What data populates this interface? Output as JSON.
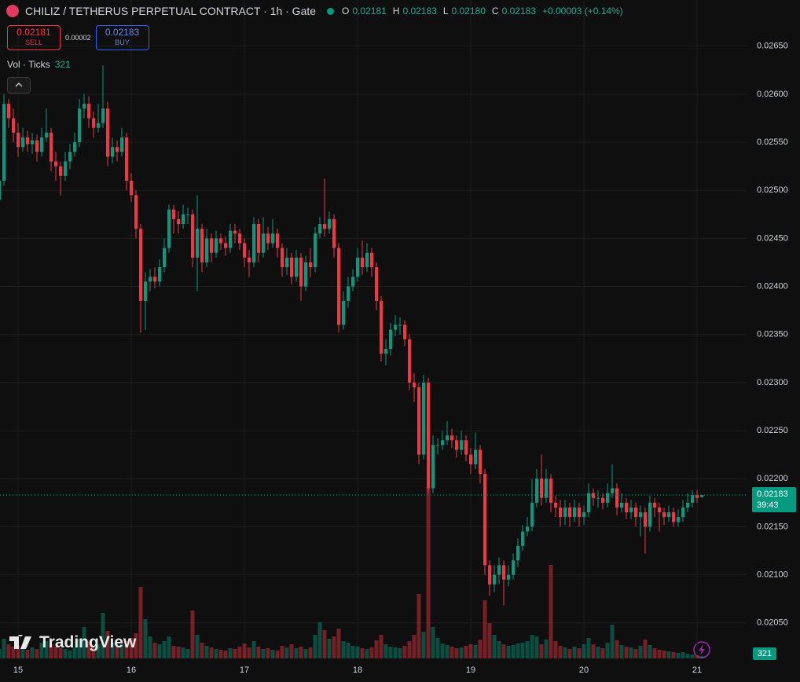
{
  "chart_data": {
    "type": "candlestick",
    "title": "CHILIZ / TETHERUS PERPETUAL CONTRACT · 1h · Gate",
    "categories": [
      null,
      null,
      null,
      null,
      "15",
      null,
      null,
      null,
      null,
      null,
      null,
      null,
      null,
      null,
      null,
      null,
      null,
      null,
      null,
      null,
      null,
      null,
      null,
      null,
      null,
      null,
      null,
      null,
      "16",
      null,
      null,
      null,
      null,
      null,
      null,
      null,
      null,
      null,
      null,
      null,
      null,
      null,
      null,
      null,
      null,
      null,
      null,
      null,
      null,
      null,
      null,
      null,
      "17",
      null,
      null,
      null,
      null,
      null,
      null,
      null,
      null,
      null,
      null,
      null,
      null,
      null,
      null,
      null,
      null,
      null,
      null,
      null,
      null,
      null,
      null,
      null,
      "18",
      null,
      null,
      null,
      null,
      null,
      null,
      null,
      null,
      null,
      null,
      null,
      null,
      null,
      null,
      null,
      null,
      null,
      null,
      null,
      null,
      null,
      null,
      null,
      "19",
      null,
      null,
      null,
      null,
      null,
      null,
      null,
      null,
      null,
      null,
      null,
      null,
      null,
      null,
      null,
      null,
      null,
      null,
      null,
      null,
      null,
      null,
      null,
      "20",
      null,
      null,
      null,
      null,
      null,
      null,
      null,
      null,
      null,
      null,
      null,
      null,
      null,
      null,
      null,
      null,
      null,
      null,
      null,
      null,
      null,
      null,
      null,
      "21",
      null
    ],
    "open": [
      0.0249,
      0.0251,
      0.0259,
      0.02575,
      0.0256,
      0.02545,
      0.02555,
      0.02548,
      0.02552,
      0.0254,
      0.02555,
      0.0256,
      0.0253,
      0.02525,
      0.02515,
      0.0253,
      0.0254,
      0.0255,
      0.02585,
      0.0259,
      0.02575,
      0.02565,
      0.0257,
      0.02585,
      0.02535,
      0.02545,
      0.0254,
      0.02555,
      0.0251,
      0.02495,
      0.0246,
      0.02385,
      0.02405,
      0.0241,
      0.02405,
      0.0242,
      0.0244,
      0.0248,
      0.0247,
      0.02465,
      0.02475,
      0.02475,
      0.0243,
      0.0246,
      0.02425,
      0.0245,
      0.02435,
      0.0245,
      0.02445,
      0.0244,
      0.02458,
      0.02455,
      0.02445,
      0.0243,
      0.02425,
      0.02465,
      0.02435,
      0.02455,
      0.02445,
      0.02455,
      0.0244,
      0.0242,
      0.0243,
      0.0241,
      0.0243,
      0.024,
      0.02425,
      0.0242,
      0.02455,
      0.02465,
      0.0246,
      0.0247,
      0.0244,
      0.0236,
      0.02385,
      0.024,
      0.0241,
      0.0243,
      0.0242,
      0.02435,
      0.0242,
      0.02385,
      0.0233,
      0.02335,
      0.02355,
      0.0236,
      0.0236,
      0.02345,
      0.023,
      0.02295,
      0.02225,
      0.023,
      0.0219,
      0.02235,
      0.02235,
      0.0224,
      0.02245,
      0.0224,
      0.0223,
      0.0224,
      0.02225,
      0.02215,
      0.0223,
      0.02205,
      0.0211,
      0.0209,
      0.021,
      0.0211,
      0.02095,
      0.021,
      0.02115,
      0.0213,
      0.02145,
      0.0215,
      0.02175,
      0.022,
      0.0218,
      0.022,
      0.02175,
      0.0217,
      0.0216,
      0.0217,
      0.0216,
      0.0217,
      0.0216,
      0.02165,
      0.02185,
      0.0218,
      0.0218,
      0.02175,
      0.02185,
      0.0219,
      0.0217,
      0.02175,
      0.02165,
      0.0217,
      0.0216,
      0.02165,
      0.0215,
      0.02175,
      0.0217,
      0.02165,
      0.0216,
      0.02165,
      0.02155,
      0.0216,
      0.0217,
      0.02175,
      0.02183,
      0.02181
    ],
    "high": [
      0.0253,
      0.026,
      0.02595,
      0.02585,
      0.0257,
      0.02565,
      0.02562,
      0.0256,
      0.02558,
      0.02565,
      0.02585,
      0.02565,
      0.0254,
      0.0253,
      0.0254,
      0.02548,
      0.0256,
      0.02595,
      0.026,
      0.02598,
      0.02582,
      0.0259,
      0.0263,
      0.02592,
      0.02555,
      0.02552,
      0.02565,
      0.0256,
      0.02518,
      0.025,
      0.02465,
      0.02415,
      0.02418,
      0.0242,
      0.02428,
      0.0245,
      0.02485,
      0.02485,
      0.02478,
      0.02485,
      0.02482,
      0.0248,
      0.02495,
      0.02465,
      0.0246,
      0.02455,
      0.02458,
      0.02455,
      0.02452,
      0.02465,
      0.02465,
      0.0246,
      0.0245,
      0.02438,
      0.02472,
      0.0247,
      0.02472,
      0.02462,
      0.0247,
      0.0246,
      0.02445,
      0.0244,
      0.02435,
      0.02438,
      0.02435,
      0.02432,
      0.0244,
      0.02462,
      0.02472,
      0.02512,
      0.02478,
      0.02475,
      0.02445,
      0.02395,
      0.0241,
      0.02418,
      0.0244,
      0.02448,
      0.02445,
      0.0244,
      0.02425,
      0.0239,
      0.02345,
      0.02362,
      0.0237,
      0.02368,
      0.02365,
      0.0235,
      0.0231,
      0.023,
      0.02308,
      0.02305,
      0.02245,
      0.02242,
      0.0225,
      0.0226,
      0.02252,
      0.02245,
      0.0225,
      0.02245,
      0.02232,
      0.02248,
      0.02235,
      0.0221,
      0.02115,
      0.0211,
      0.02118,
      0.02115,
      0.0211,
      0.02122,
      0.02138,
      0.02152,
      0.0216,
      0.022,
      0.0221,
      0.02225,
      0.0221,
      0.02205,
      0.02182,
      0.02178,
      0.02178,
      0.02175,
      0.02178,
      0.02175,
      0.02172,
      0.02195,
      0.0219,
      0.02188,
      0.02185,
      0.02195,
      0.02215,
      0.02195,
      0.02185,
      0.0218,
      0.02178,
      0.02175,
      0.02172,
      0.0217,
      0.02182,
      0.0218,
      0.02175,
      0.0217,
      0.02172,
      0.0217,
      0.02168,
      0.02178,
      0.02185,
      0.02188,
      0.02188,
      0.02183
    ],
    "low": [
      0.0248,
      0.02505,
      0.02565,
      0.0255,
      0.02535,
      0.0254,
      0.0254,
      0.02538,
      0.0253,
      0.02535,
      0.0255,
      0.0252,
      0.0251,
      0.02495,
      0.0251,
      0.02522,
      0.02535,
      0.02545,
      0.02575,
      0.02565,
      0.02555,
      0.0256,
      0.02565,
      0.02525,
      0.02528,
      0.0253,
      0.02535,
      0.025,
      0.02488,
      0.0245,
      0.02352,
      0.02355,
      0.02395,
      0.02398,
      0.024,
      0.02415,
      0.02435,
      0.02455,
      0.02455,
      0.0246,
      0.02465,
      0.0242,
      0.02395,
      0.02415,
      0.0242,
      0.02425,
      0.0243,
      0.02438,
      0.02432,
      0.02435,
      0.02445,
      0.02438,
      0.0242,
      0.0241,
      0.0242,
      0.02425,
      0.0243,
      0.02438,
      0.0244,
      0.0243,
      0.0241,
      0.02412,
      0.02402,
      0.02405,
      0.02385,
      0.02395,
      0.0241,
      0.02415,
      0.0245,
      0.02452,
      0.02455,
      0.0243,
      0.02352,
      0.02355,
      0.02378,
      0.02395,
      0.02405,
      0.02412,
      0.02415,
      0.0241,
      0.02375,
      0.02322,
      0.02318,
      0.02328,
      0.02348,
      0.0235,
      0.02338,
      0.02292,
      0.0228,
      0.02215,
      0.0222,
      0.02185,
      0.02185,
      0.02225,
      0.0223,
      0.02235,
      0.02232,
      0.02222,
      0.02225,
      0.02218,
      0.02205,
      0.0221,
      0.02195,
      0.021,
      0.02078,
      0.02082,
      0.0209,
      0.02068,
      0.02088,
      0.02095,
      0.02108,
      0.02125,
      0.0214,
      0.02145,
      0.0217,
      0.02172,
      0.02175,
      0.02165,
      0.0216,
      0.0215,
      0.02152,
      0.0215,
      0.02155,
      0.0215,
      0.02152,
      0.0216,
      0.02172,
      0.0217,
      0.02168,
      0.0217,
      0.0218,
      0.02162,
      0.02165,
      0.02158,
      0.02158,
      0.0215,
      0.0214,
      0.02122,
      0.02145,
      0.0216,
      0.02145,
      0.02152,
      0.02155,
      0.0215,
      0.0215,
      0.02155,
      0.02165,
      0.0217,
      0.02175,
      0.0218
    ],
    "close": [
      0.0251,
      0.0259,
      0.02575,
      0.0256,
      0.02545,
      0.02555,
      0.02548,
      0.02552,
      0.0254,
      0.02555,
      0.0256,
      0.0253,
      0.02525,
      0.02515,
      0.0253,
      0.0254,
      0.0255,
      0.02585,
      0.0259,
      0.02575,
      0.02565,
      0.0257,
      0.02585,
      0.02535,
      0.02545,
      0.0254,
      0.02555,
      0.0251,
      0.02495,
      0.0246,
      0.02385,
      0.02405,
      0.0241,
      0.02405,
      0.0242,
      0.0244,
      0.0248,
      0.0247,
      0.02465,
      0.02475,
      0.02475,
      0.0243,
      0.0246,
      0.02425,
      0.0245,
      0.02435,
      0.0245,
      0.02445,
      0.0244,
      0.02458,
      0.02455,
      0.02445,
      0.0243,
      0.02425,
      0.02465,
      0.02435,
      0.02455,
      0.02445,
      0.02455,
      0.0244,
      0.0242,
      0.0243,
      0.0241,
      0.0243,
      0.024,
      0.02425,
      0.0242,
      0.02455,
      0.02465,
      0.0246,
      0.0247,
      0.0244,
      0.0236,
      0.02385,
      0.024,
      0.0241,
      0.0243,
      0.0242,
      0.02435,
      0.0242,
      0.02385,
      0.0233,
      0.02335,
      0.02355,
      0.0236,
      0.0236,
      0.02345,
      0.023,
      0.02295,
      0.02225,
      0.023,
      0.0219,
      0.02235,
      0.02235,
      0.0224,
      0.02245,
      0.0224,
      0.0223,
      0.0224,
      0.02225,
      0.02215,
      0.0223,
      0.02205,
      0.0211,
      0.0209,
      0.021,
      0.0211,
      0.02095,
      0.021,
      0.02115,
      0.0213,
      0.02145,
      0.0215,
      0.02175,
      0.022,
      0.0218,
      0.022,
      0.02175,
      0.0217,
      0.0216,
      0.0217,
      0.0216,
      0.0217,
      0.0216,
      0.02165,
      0.02185,
      0.0218,
      0.0218,
      0.02175,
      0.02185,
      0.0219,
      0.0217,
      0.02175,
      0.02165,
      0.0217,
      0.0216,
      0.02165,
      0.0215,
      0.02175,
      0.0217,
      0.02165,
      0.0216,
      0.02165,
      0.02155,
      0.0216,
      0.0217,
      0.02175,
      0.02183,
      0.0218,
      0.02183
    ],
    "volume": [
      1200,
      2500,
      1800,
      1500,
      1600,
      1300,
      1100,
      1400,
      1200,
      2000,
      2200,
      1800,
      1500,
      1300,
      1200,
      1000,
      1400,
      2500,
      4000,
      2200,
      1600,
      1800,
      5800,
      3500,
      2000,
      1500,
      1800,
      2200,
      2600,
      3200,
      9100,
      5000,
      2800,
      2000,
      1800,
      2200,
      2800,
      1600,
      1500,
      1400,
      1200,
      6100,
      3000,
      2000,
      1600,
      1400,
      1200,
      1100,
      1000,
      1300,
      1200,
      1500,
      1900,
      1400,
      2200,
      1500,
      1200,
      1300,
      1100,
      1000,
      1600,
      1400,
      1800,
      1300,
      1500,
      1200,
      1400,
      3000,
      4600,
      3600,
      2500,
      2800,
      3800,
      2200,
      2000,
      1600,
      1500,
      1300,
      1200,
      1400,
      2300,
      3000,
      1800,
      1500,
      1400,
      1300,
      1600,
      2200,
      3000,
      8200,
      3400,
      21800,
      4000,
      2600,
      1900,
      1700,
      1500,
      1300,
      1400,
      1600,
      1800,
      1700,
      2400,
      7400,
      4500,
      3000,
      2200,
      1800,
      1600,
      1700,
      1900,
      2000,
      2200,
      3000,
      2800,
      1800,
      2400,
      11900,
      2200,
      1600,
      1400,
      1200,
      1500,
      1300,
      1800,
      2600,
      1800,
      1500,
      1300,
      2000,
      4300,
      2300,
      1700,
      1500,
      1400,
      1200,
      1600,
      2400,
      1700,
      1300,
      1100,
      1000,
      900,
      800,
      700,
      800,
      600,
      500,
      400,
      321
    ],
    "volume_label": "Vol · Ticks",
    "volume_ylim": [
      0,
      25000
    ],
    "up_color": "#089981",
    "down_color": "#f23645",
    "ylim": [
      0.02013,
      0.02698
    ],
    "yticks": [
      {
        "value": 0.0205,
        "label": "0.02050"
      },
      {
        "value": 0.021,
        "label": "0.02100"
      },
      {
        "value": 0.0215,
        "label": "0.02150"
      },
      {
        "value": 0.022,
        "label": "0.02200"
      },
      {
        "value": 0.0225,
        "label": "0.02250"
      },
      {
        "value": 0.023,
        "label": "0.02300"
      },
      {
        "value": 0.0235,
        "label": "0.02350"
      },
      {
        "value": 0.024,
        "label": "0.02400"
      },
      {
        "value": 0.0245,
        "label": "0.02450"
      },
      {
        "value": 0.025,
        "label": "0.02500"
      },
      {
        "value": 0.0255,
        "label": "0.02550"
      },
      {
        "value": 0.026,
        "label": "0.02600"
      },
      {
        "value": 0.0265,
        "label": "0.02650"
      }
    ],
    "grid": true,
    "ohlc_labels": [
      "O",
      "H",
      "L",
      "C"
    ],
    "value_labels": {
      "open": "0.02181",
      "high": "0.02183",
      "low": "0.02180",
      "close": "0.02183"
    },
    "change_label": "+0.00003 (+0.14%)",
    "countdown": "39:43"
  },
  "trade_panel": {
    "sell_price": "0.02181",
    "sell_label": "SELL",
    "spread": "0.00002",
    "buy_price": "0.02183",
    "buy_label": "BUY"
  },
  "branding": "TradingView"
}
